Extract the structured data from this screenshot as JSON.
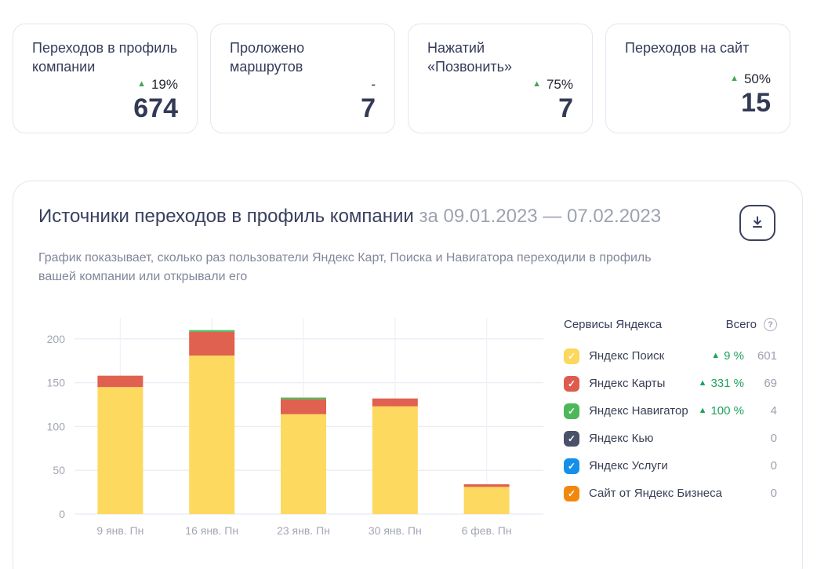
{
  "stat_cards": [
    {
      "title": "Переходов в профиль компании",
      "trend": "up",
      "change": "19%",
      "value": "674"
    },
    {
      "title": "Проложено маршрутов",
      "trend": "none",
      "change": "-",
      "value": "7"
    },
    {
      "title": "Нажатий «Позвонить»",
      "trend": "up",
      "change": "75%",
      "value": "7"
    },
    {
      "title": "Переходов на сайт",
      "trend": "up",
      "change": "50%",
      "value": "15"
    }
  ],
  "chart_card": {
    "title": "Источники переходов в профиль компании",
    "period": "за 09.01.2023 — 07.02.2023",
    "description": "График показывает, сколько раз пользователи Яндекс Карт, Поиска и Навигатора переходили в профиль вашей компании или открывали его",
    "icons": {
      "download": "download-icon",
      "help": "question-circle-icon",
      "trend_up": "triangle-up-icon"
    },
    "legend": {
      "header_services": "Сервисы Яндекса",
      "header_total": "Всего",
      "help_glyph": "?",
      "items": [
        {
          "label": "Яндекс Поиск",
          "color": "#FBD75E",
          "checked": true,
          "change": "9 %",
          "total": "601"
        },
        {
          "label": "Яндекс Карты",
          "color": "#DE5C4F",
          "checked": true,
          "change": "331 %",
          "total": "69"
        },
        {
          "label": "Яндекс Навигатор",
          "color": "#4CB85A",
          "checked": true,
          "change": "100 %",
          "total": "4"
        },
        {
          "label": "Яндекс Кью",
          "color": "#4B5268",
          "checked": true,
          "change": "",
          "total": "0"
        },
        {
          "label": "Яндекс Услуги",
          "color": "#1590EA",
          "checked": true,
          "change": "",
          "total": "0"
        },
        {
          "label": "Сайт от Яндекс Бизнеса",
          "color": "#F1880C",
          "checked": true,
          "change": "",
          "total": "0"
        }
      ]
    }
  },
  "chart_data": {
    "type": "bar",
    "stacked": true,
    "categories": [
      "9 янв. Пн",
      "16 янв. Пн",
      "23 янв. Пн",
      "30 янв. Пн",
      "6 фев. Пн"
    ],
    "series": [
      {
        "name": "Яндекс Поиск",
        "color": "#FDD95F",
        "values": [
          145,
          181,
          114,
          123,
          31
        ]
      },
      {
        "name": "Яндекс Карты",
        "color": "#E0614F",
        "values": [
          13,
          27,
          17,
          9,
          3
        ]
      },
      {
        "name": "Яндекс Навигатор",
        "color": "#4CB85A",
        "values": [
          0,
          2,
          2,
          0,
          0
        ]
      }
    ],
    "y_ticks": [
      0,
      50,
      100,
      150,
      200
    ],
    "ylim": [
      0,
      220
    ],
    "grid": true,
    "legend_position": "right",
    "colors": {
      "h_gridline": "#E9EDF5",
      "v_gridline": "#EFF2F8",
      "tick_text": "#A3A7B4"
    }
  }
}
